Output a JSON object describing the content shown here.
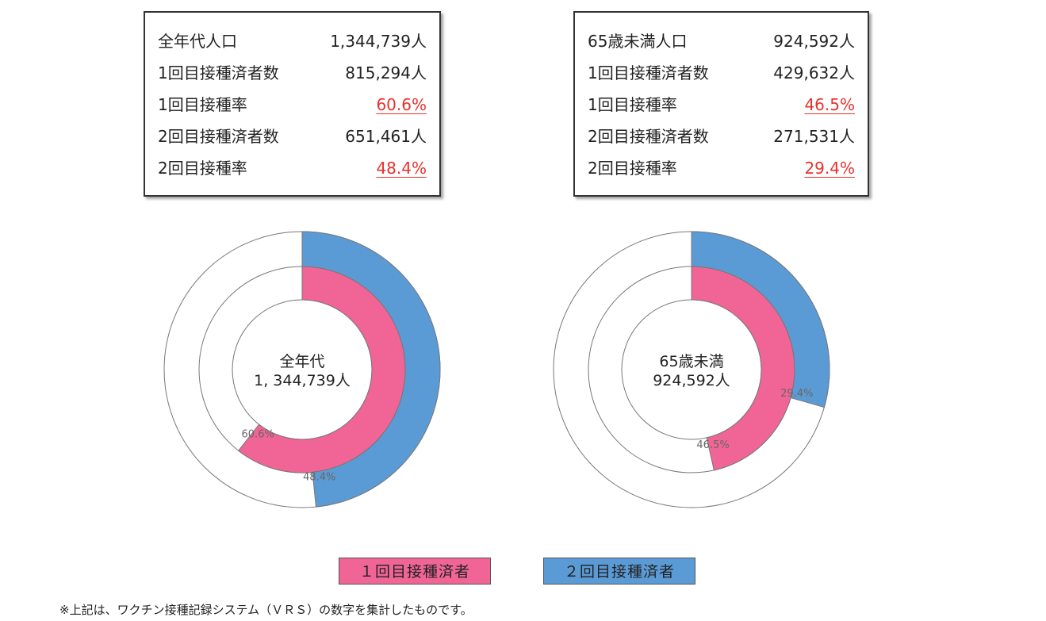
{
  "summary_boxes": [
    {
      "rows": [
        {
          "label": "全年代人口",
          "value": "1,344,739人",
          "highlight": false
        },
        {
          "label": "1回目接種済者数",
          "value": "815,294人",
          "highlight": false
        },
        {
          "label": "1回目接種率",
          "value": "60.6%",
          "highlight": true
        },
        {
          "label": "2回目接種済者数",
          "value": "651,461人",
          "highlight": false
        },
        {
          "label": "2回目接種率",
          "value": "48.4%",
          "highlight": true
        }
      ]
    },
    {
      "rows": [
        {
          "label": "65歳未満人口",
          "value": "924,592人",
          "highlight": false
        },
        {
          "label": "1回目接種済者数",
          "value": "429,632人",
          "highlight": false
        },
        {
          "label": "1回目接種率",
          "value": "46.5%",
          "highlight": true
        },
        {
          "label": "2回目接種済者数",
          "value": "271,531人",
          "highlight": false
        },
        {
          "label": "2回目接種率",
          "value": "29.4%",
          "highlight": true
        }
      ]
    }
  ],
  "chart_data": [
    {
      "type": "pie",
      "variant": "nested-donut",
      "center_label": [
        "全年代",
        "1, 344,739人"
      ],
      "series": [
        {
          "name": "1回目接種済者",
          "ring": "inner",
          "value": 60.6,
          "label": "60.6%"
        },
        {
          "name": "2回目接種済者",
          "ring": "outer",
          "value": 48.4,
          "label": "48.4%"
        }
      ]
    },
    {
      "type": "pie",
      "variant": "nested-donut",
      "center_label": [
        "65歳未満",
        "924,592人"
      ],
      "series": [
        {
          "name": "1回目接種済者",
          "ring": "inner",
          "value": 46.5,
          "label": "46.5%"
        },
        {
          "name": "2回目接種済者",
          "ring": "outer",
          "value": 29.4,
          "label": "29.4%"
        }
      ]
    }
  ],
  "legend": [
    {
      "label": "１回目接種済者",
      "color": "#f06595"
    },
    {
      "label": "２回目接種済者",
      "color": "#5b9bd5"
    }
  ],
  "colors": {
    "first_dose": "#f06595",
    "second_dose": "#5b9bd5",
    "highlight_text": "#e8322e",
    "ring_outline": "#777777"
  },
  "footnote": "※上記は、ワクチン接種記録システム（ＶＲＳ）の数字を集計したものです。"
}
